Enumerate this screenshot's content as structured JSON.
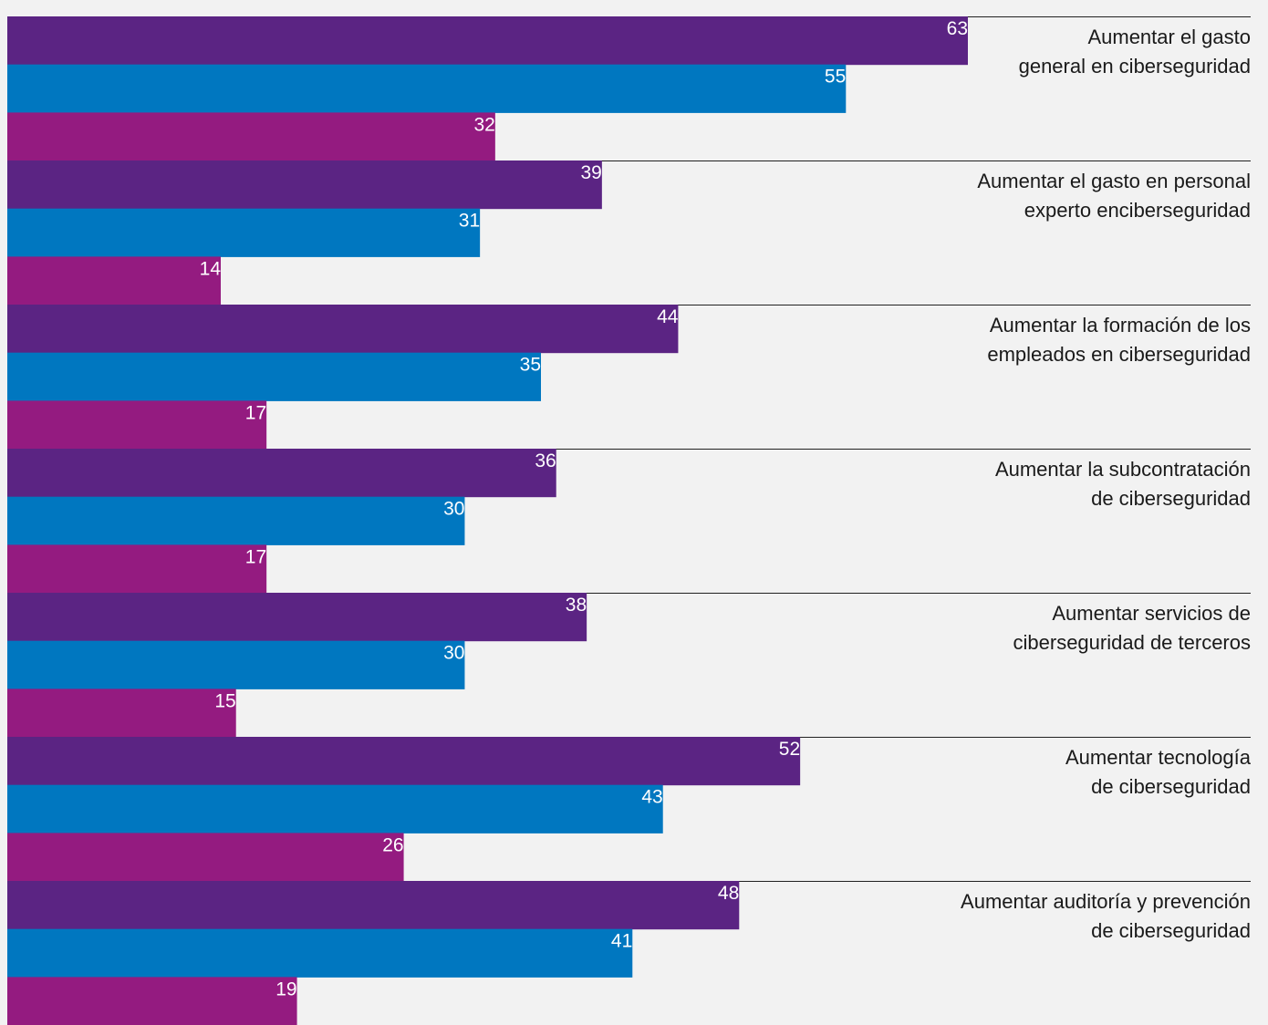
{
  "chart_data": {
    "type": "bar",
    "orientation": "horizontal",
    "categories": [
      [
        "Aumentar el gasto",
        "general en ciberseguridad"
      ],
      [
        "Aumentar el gasto en personal",
        "experto enciberseguridad"
      ],
      [
        "Aumentar la formación de los",
        "empleados en ciberseguridad"
      ],
      [
        "Aumentar la subcontratación",
        "de ciberseguridad"
      ],
      [
        "Aumentar servicios de",
        "ciberseguridad de terceros"
      ],
      [
        "Aumentar tecnología",
        "de ciberseguridad"
      ],
      [
        "Aumentar auditoría y prevención",
        "de ciberseguridad"
      ]
    ],
    "series": [
      {
        "values": [
          63,
          39,
          44,
          36,
          38,
          52,
          48
        ],
        "color": "#5b2483"
      },
      {
        "values": [
          55,
          31,
          35,
          30,
          30,
          43,
          41
        ],
        "color": "#0077c0"
      },
      {
        "values": [
          32,
          14,
          17,
          17,
          15,
          26,
          19
        ],
        "color": "#941b80"
      }
    ],
    "xlim": [
      0,
      83
    ],
    "legend": "none",
    "grid": false
  }
}
